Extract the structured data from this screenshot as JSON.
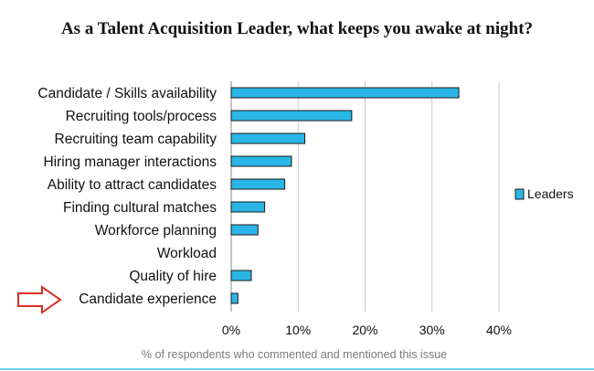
{
  "chart_data": {
    "type": "bar",
    "orientation": "horizontal",
    "title": "As a Talent Acquisition Leader, what keeps you awake at night?",
    "xlabel": "% of respondents who commented and mentioned this issue",
    "ylabel": "",
    "categories": [
      "Candidate / Skills availability",
      "Recruiting tools/process",
      "Recruiting team capability",
      "Hiring manager interactions",
      "Ability to attract candidates",
      "Finding cultural matches",
      "Workforce planning",
      "Workload",
      "Quality of hire",
      "Candidate experience"
    ],
    "series": [
      {
        "name": "Leaders",
        "values": [
          34,
          18,
          11,
          9,
          8,
          5,
          4,
          0,
          3,
          1
        ]
      }
    ],
    "xlim": [
      0,
      40
    ],
    "xticks": [
      "0%",
      "10%",
      "20%",
      "30%",
      "40%"
    ],
    "tick_values": [
      0,
      10,
      20,
      30,
      40
    ],
    "grid": true,
    "legend": "right",
    "highlighted_category": "Candidate experience",
    "colors": {
      "bar": "#29b6e6",
      "bar_stroke": "#1a1a1a",
      "grid": "#c8c8c8",
      "arrow": "#d93025",
      "footer_line": "#6fd0ee"
    }
  }
}
